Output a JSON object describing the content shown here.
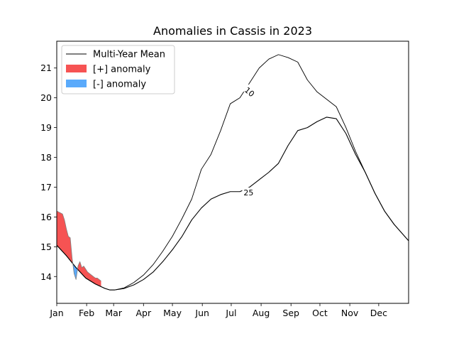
{
  "chart_data": {
    "type": "area",
    "title": "Anomalies in Cassis in 2023",
    "xlabel": "",
    "ylabel": "",
    "x_ticks": [
      "Jan",
      "Feb",
      "Mar",
      "Apr",
      "May",
      "Jun",
      "Jul",
      "Aug",
      "Sep",
      "Oct",
      "Nov",
      "Dec"
    ],
    "xlim": [
      0,
      365
    ],
    "ylim": [
      13.1,
      21.9
    ],
    "y_ticks": [
      14,
      15,
      16,
      17,
      18,
      19,
      20,
      21
    ],
    "grid": false,
    "legend": {
      "placement": "top-left",
      "entries": [
        {
          "label": "Multi-Year Mean",
          "kind": "line",
          "color": "#000000"
        },
        {
          "label": "[+] anomaly",
          "kind": "patch",
          "color": "#f65353"
        },
        {
          "label": "[-] anomaly",
          "kind": "patch",
          "color": "#5aaafb"
        }
      ]
    },
    "series": [
      {
        "name": "Multi-Year Mean",
        "color": "#000000",
        "x": [
          0,
          10,
          20,
          30,
          40,
          50,
          55,
          60,
          70,
          80,
          90,
          100,
          110,
          120,
          130,
          140,
          150,
          160,
          170,
          180,
          190,
          200,
          210,
          220,
          230,
          240,
          250,
          260,
          270,
          280,
          290,
          300,
          310,
          320,
          330,
          340,
          350,
          365
        ],
        "y": [
          15.05,
          14.7,
          14.3,
          13.95,
          13.75,
          13.6,
          13.55,
          13.55,
          13.6,
          13.72,
          13.9,
          14.15,
          14.5,
          14.9,
          15.35,
          15.9,
          16.3,
          16.6,
          16.75,
          16.85,
          16.85,
          17.0,
          17.25,
          17.5,
          17.8,
          18.4,
          18.9,
          19.0,
          19.2,
          19.35,
          19.3,
          18.8,
          18.1,
          17.5,
          16.8,
          16.2,
          15.75,
          15.2
        ]
      },
      {
        "name": "10",
        "color": "#000000",
        "x": [
          0,
          10,
          20,
          30,
          40,
          50,
          55,
          60,
          70,
          80,
          90,
          100,
          110,
          120,
          130,
          140,
          150,
          160,
          170,
          180,
          190,
          200,
          210,
          220,
          230,
          240,
          250,
          260,
          270,
          280,
          290,
          300,
          310,
          320,
          330,
          340,
          350,
          365
        ],
        "y": [
          15.05,
          14.7,
          14.3,
          13.95,
          13.75,
          13.6,
          13.55,
          13.55,
          13.62,
          13.8,
          14.05,
          14.4,
          14.85,
          15.35,
          15.95,
          16.6,
          17.6,
          18.1,
          18.9,
          19.8,
          20.0,
          20.5,
          21.0,
          21.3,
          21.45,
          21.35,
          21.2,
          20.6,
          20.2,
          19.95,
          19.7,
          19.0,
          18.2,
          17.5,
          16.8,
          16.2,
          15.75,
          15.2
        ]
      },
      {
        "name": "2023",
        "color": "#808080",
        "x": [
          0,
          3,
          6,
          8,
          10,
          12,
          14,
          16,
          18,
          20,
          22,
          24,
          26,
          28,
          30,
          32,
          34,
          36,
          38,
          40,
          42,
          44,
          46
        ],
        "y": [
          16.2,
          16.15,
          16.1,
          15.9,
          15.6,
          15.35,
          15.3,
          14.6,
          14.1,
          13.9,
          14.35,
          14.5,
          14.3,
          14.35,
          14.25,
          14.15,
          14.1,
          14.05,
          14.0,
          13.95,
          13.95,
          13.9,
          13.85
        ]
      }
    ],
    "contour_labels": [
      {
        "text": "10",
        "x": 200,
        "y": 20.2,
        "rotation": 40
      },
      {
        "text": "25",
        "x": 199,
        "y": 16.82,
        "rotation": 0
      }
    ]
  }
}
